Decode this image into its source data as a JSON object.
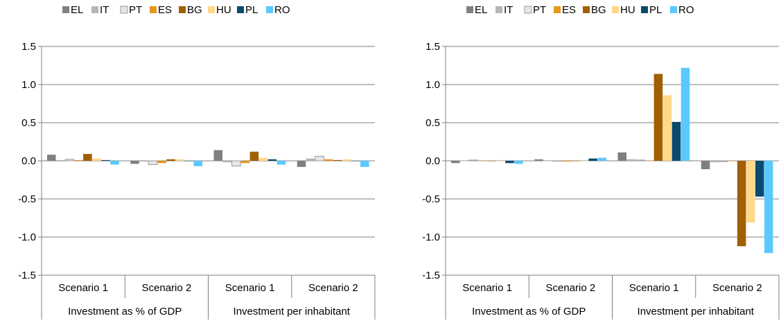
{
  "legend": [
    {
      "name": "EL",
      "color": "#808080"
    },
    {
      "name": "IT",
      "color": "#b4b4b4"
    },
    {
      "name": "PT",
      "color": "#e6e6e6"
    },
    {
      "name": "ES",
      "color": "#e8961c"
    },
    {
      "name": "BG",
      "color": "#a05f00"
    },
    {
      "name": "HU",
      "color": "#ffd88a"
    },
    {
      "name": "PL",
      "color": "#0a4a6e"
    },
    {
      "name": "RO",
      "color": "#5bc8ff"
    }
  ],
  "colors": {
    "PT_border": "#9a9a9a",
    "axis": "#7f7f7f"
  },
  "chart_data": [
    {
      "type": "bar",
      "title": "",
      "xlabel": "",
      "ylabel": "",
      "ylim": [
        -1.5,
        1.5
      ],
      "yticks": [
        "1.5",
        "1.0",
        "0.5",
        "0.0",
        "-0.5",
        "-1.0",
        "-1.5"
      ],
      "categories": [
        "Scenario 1",
        "Scenario 2",
        "Scenario 1",
        "Scenario 2"
      ],
      "groups": [
        "Investment as % of GDP",
        "Investment per inhabitant"
      ],
      "legend_position": "top",
      "grid": "horizontal",
      "series": [
        {
          "name": "EL",
          "values": [
            0.08,
            -0.04,
            0.14,
            -0.08
          ]
        },
        {
          "name": "IT",
          "values": [
            0.01,
            -0.01,
            -0.02,
            0.03
          ]
        },
        {
          "name": "PT",
          "values": [
            0.02,
            -0.05,
            -0.07,
            0.06
          ]
        },
        {
          "name": "ES",
          "values": [
            0.01,
            -0.03,
            -0.03,
            0.02
          ]
        },
        {
          "name": "BG",
          "values": [
            0.09,
            0.02,
            0.12,
            0.01
          ]
        },
        {
          "name": "HU",
          "values": [
            0.03,
            0.02,
            0.04,
            0.02
          ]
        },
        {
          "name": "PL",
          "values": [
            0.01,
            0.0,
            0.02,
            0.0
          ]
        },
        {
          "name": "RO",
          "values": [
            -0.05,
            -0.07,
            -0.05,
            -0.08
          ]
        }
      ]
    },
    {
      "type": "bar",
      "title": "",
      "xlabel": "",
      "ylabel": "",
      "ylim": [
        -1.5,
        1.5
      ],
      "yticks": [
        "1.5",
        "1.0",
        "0.5",
        "0.0",
        "-0.5",
        "-1.0",
        "-1.5"
      ],
      "categories": [
        "Scenario 1",
        "Scenario 2",
        "Scenario 1",
        "Scenario 2"
      ],
      "groups": [
        "Investment as % of GDP",
        "Investment per inhabitant"
      ],
      "legend_position": "top",
      "grid": "horizontal",
      "series": [
        {
          "name": "EL",
          "values": [
            -0.03,
            0.02,
            0.11,
            -0.11
          ]
        },
        {
          "name": "IT",
          "values": [
            0.0,
            0.0,
            0.02,
            -0.02
          ]
        },
        {
          "name": "PT",
          "values": [
            0.01,
            0.0,
            0.01,
            -0.01
          ]
        },
        {
          "name": "ES",
          "values": [
            0.0,
            -0.01,
            0.0,
            0.0
          ]
        },
        {
          "name": "BG",
          "values": [
            0.0,
            0.0,
            1.14,
            -1.12
          ]
        },
        {
          "name": "HU",
          "values": [
            0.0,
            0.0,
            0.86,
            -0.81
          ]
        },
        {
          "name": "PL",
          "values": [
            -0.03,
            0.03,
            0.51,
            -0.47
          ]
        },
        {
          "name": "RO",
          "values": [
            -0.04,
            0.04,
            1.22,
            -1.21
          ]
        }
      ]
    }
  ]
}
